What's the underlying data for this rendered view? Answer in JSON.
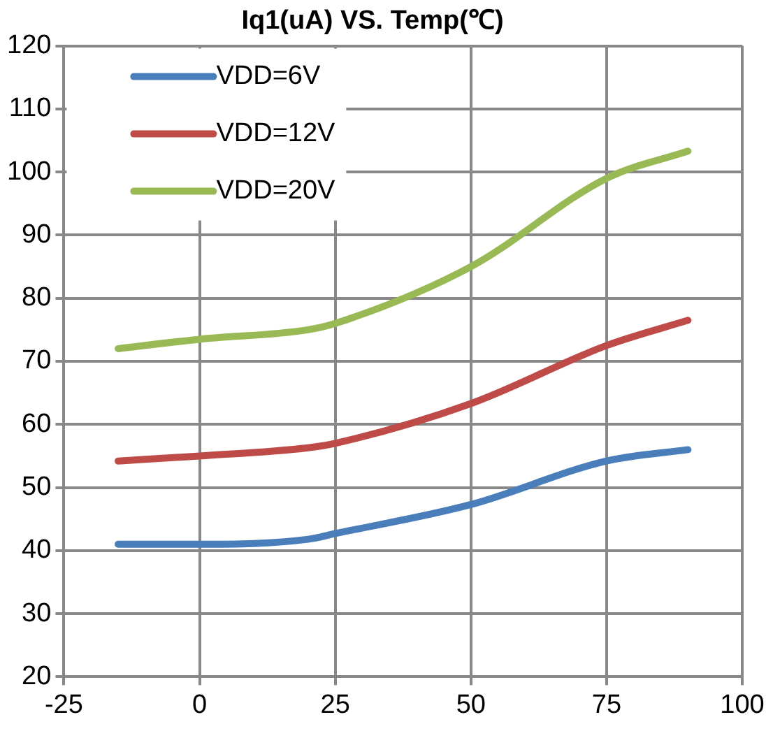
{
  "chart_data": {
    "type": "line",
    "title": "Iq1(uA) VS. Temp(℃)",
    "x": [
      -15,
      0,
      20,
      25,
      50,
      75,
      90
    ],
    "series": [
      {
        "name": "VDD=6V",
        "color": "#4a7ebb",
        "values": [
          41,
          41,
          41.8,
          42.7,
          47.3,
          54.2,
          56
        ]
      },
      {
        "name": "VDD=12V",
        "color": "#be4b48",
        "values": [
          54.2,
          55,
          56.3,
          57,
          63.3,
          72.5,
          76.5
        ]
      },
      {
        "name": "VDD=20V",
        "color": "#98b954",
        "values": [
          72,
          73.5,
          75,
          76,
          85,
          99,
          103.3
        ]
      }
    ],
    "xlim": [
      -25,
      100
    ],
    "xticks": [
      -25,
      0,
      25,
      50,
      75,
      100
    ],
    "ylim": [
      20,
      120
    ],
    "yticks": [
      20,
      30,
      40,
      50,
      60,
      70,
      80,
      90,
      100,
      110,
      120
    ],
    "grid": true,
    "legend": "top left",
    "marker": "none",
    "line_style": "solid"
  }
}
